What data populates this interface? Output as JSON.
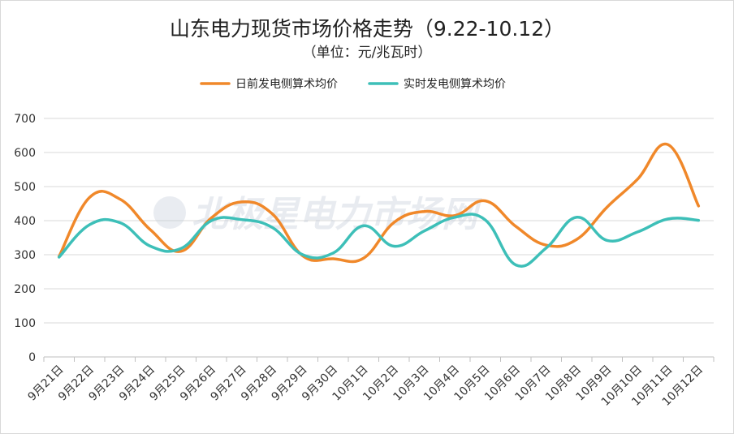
{
  "title": "山东电力现货市场价格走势（9.22-10.12）",
  "subtitle": "（单位：元/兆瓦时）",
  "watermark": "北极星电力市场网",
  "chart_data": {
    "type": "line",
    "categories": [
      "9月21日",
      "9月22日",
      "9月23日",
      "9月24日",
      "9月25日",
      "9月26日",
      "9月27日",
      "9月28日",
      "9月29日",
      "9月30日",
      "10月1日",
      "10月2日",
      "10月3日",
      "10月4日",
      "10月5日",
      "10月6日",
      "10月7日",
      "10月8日",
      "10月9日",
      "10月10日",
      "10月11日",
      "10月12日"
    ],
    "series": [
      {
        "name": "日前发电侧算术均价",
        "color": "#f0882a",
        "values": [
          295,
          468,
          463,
          373,
          310,
          408,
          455,
          420,
          297,
          288,
          290,
          395,
          427,
          415,
          458,
          383,
          328,
          345,
          440,
          522,
          623,
          443
        ]
      },
      {
        "name": "实时发电侧算术均价",
        "color": "#3dbfb8",
        "values": [
          293,
          388,
          394,
          325,
          318,
          400,
          403,
          380,
          300,
          305,
          385,
          325,
          370,
          410,
          402,
          270,
          320,
          410,
          342,
          367,
          405,
          401
        ]
      }
    ],
    "ylim": [
      0,
      700
    ],
    "yticks": [
      0,
      100,
      200,
      300,
      400,
      500,
      600,
      700
    ],
    "grid": true,
    "legend_position": "top"
  }
}
